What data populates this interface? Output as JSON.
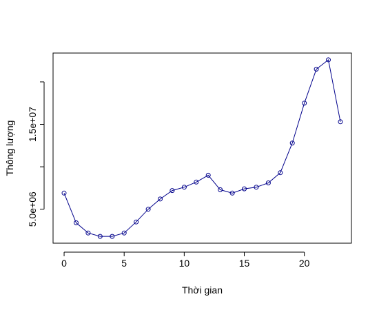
{
  "chart_data": {
    "type": "line",
    "title": "",
    "xlabel": "Thời gian",
    "ylabel": "Thông lượng",
    "x": [
      0,
      1,
      2,
      3,
      4,
      5,
      6,
      7,
      8,
      9,
      10,
      11,
      12,
      13,
      14,
      15,
      16,
      17,
      18,
      19,
      20,
      21,
      22,
      23
    ],
    "series": [
      {
        "values": [
          6900000,
          3400000,
          2200000,
          1800000,
          1800000,
          2200000,
          3500000,
          5000000,
          6200000,
          7200000,
          7600000,
          8200000,
          9000000,
          7300000,
          6900000,
          7400000,
          7600000,
          8100000,
          9300000,
          12800000,
          17500000,
          21500000,
          22600000,
          15300000
        ],
        "color": "#00008b"
      }
    ],
    "xlim": [
      -0.92,
      23.92
    ],
    "ylim": [
      1000000,
      23400000
    ],
    "xticks": [
      0,
      5,
      10,
      15,
      20
    ],
    "xtick_labels": [
      "0",
      "5",
      "10",
      "15",
      "20"
    ],
    "yticks": [
      5000000,
      15000000
    ],
    "ytick_labels": [
      "5.0e+06",
      "1.5e+07"
    ],
    "yticks_unlabeled": [
      10000000,
      20000000
    ],
    "grid": false,
    "marker": "open-circle"
  }
}
